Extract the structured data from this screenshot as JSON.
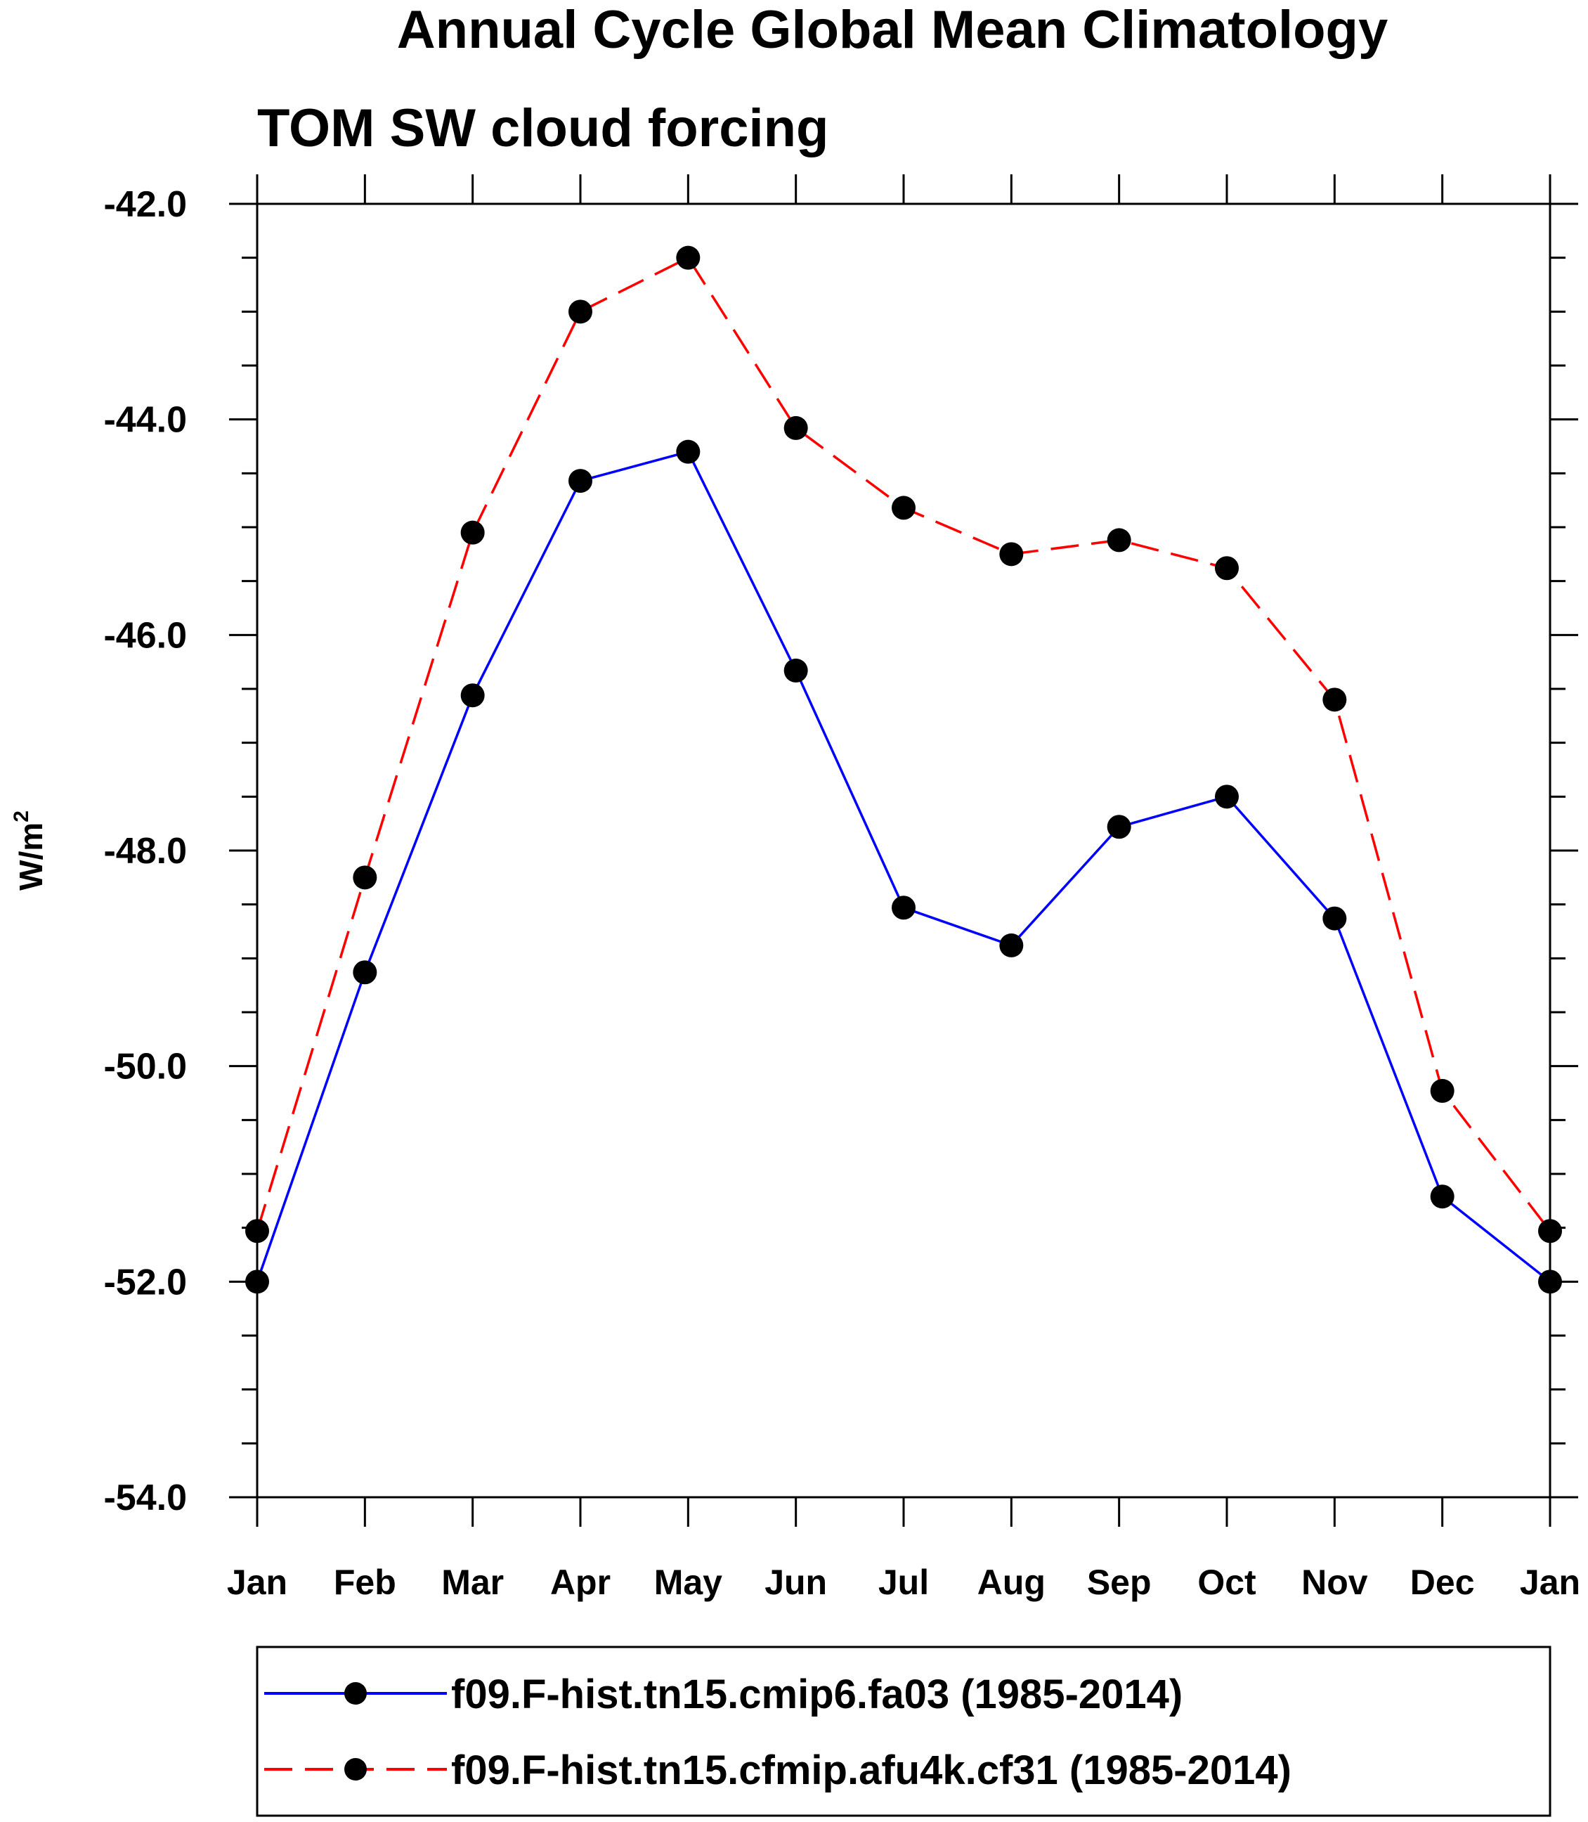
{
  "chart_data": {
    "type": "line",
    "title": "Annual Cycle Global Mean Climatology",
    "subtitle": "TOM SW cloud forcing",
    "ylabel": "W/m",
    "ylabel_superscript": "2",
    "xlabel": "",
    "categories": [
      "Jan",
      "Feb",
      "Mar",
      "Apr",
      "May",
      "Jun",
      "Jul",
      "Aug",
      "Sep",
      "Oct",
      "Nov",
      "Dec",
      "Jan"
    ],
    "ylim": [
      -54.0,
      -42.0
    ],
    "yticks": [
      -42.0,
      -44.0,
      -46.0,
      -48.0,
      -50.0,
      -52.0,
      -54.0
    ],
    "ytick_labels": [
      "-42.0",
      "-44.0",
      "-46.0",
      "-48.0",
      "-50.0",
      "-52.0",
      "-54.0"
    ],
    "y_minor_step": 0.5,
    "grid": false,
    "legend_position": "bottom",
    "series": [
      {
        "name": "f09.F-hist.tn15.cmip6.fa03 (1985-2014)",
        "color": "#0000ff",
        "line_style": "solid",
        "marker": "filled-circle",
        "values": [
          -52.0,
          -49.13,
          -46.56,
          -44.57,
          -44.3,
          -46.33,
          -48.53,
          -48.88,
          -47.78,
          -47.5,
          -48.63,
          -51.21,
          -52.0
        ]
      },
      {
        "name": "f09.F-hist.tn15.cfmip.afu4k.cf31 (1985-2014)",
        "color": "#ff0000",
        "line_style": "dashed",
        "marker": "filled-circle",
        "values": [
          -51.53,
          -48.25,
          -45.05,
          -43.0,
          -42.5,
          -44.08,
          -44.82,
          -45.25,
          -45.12,
          -45.38,
          -46.6,
          -50.23,
          -51.53
        ]
      }
    ]
  }
}
